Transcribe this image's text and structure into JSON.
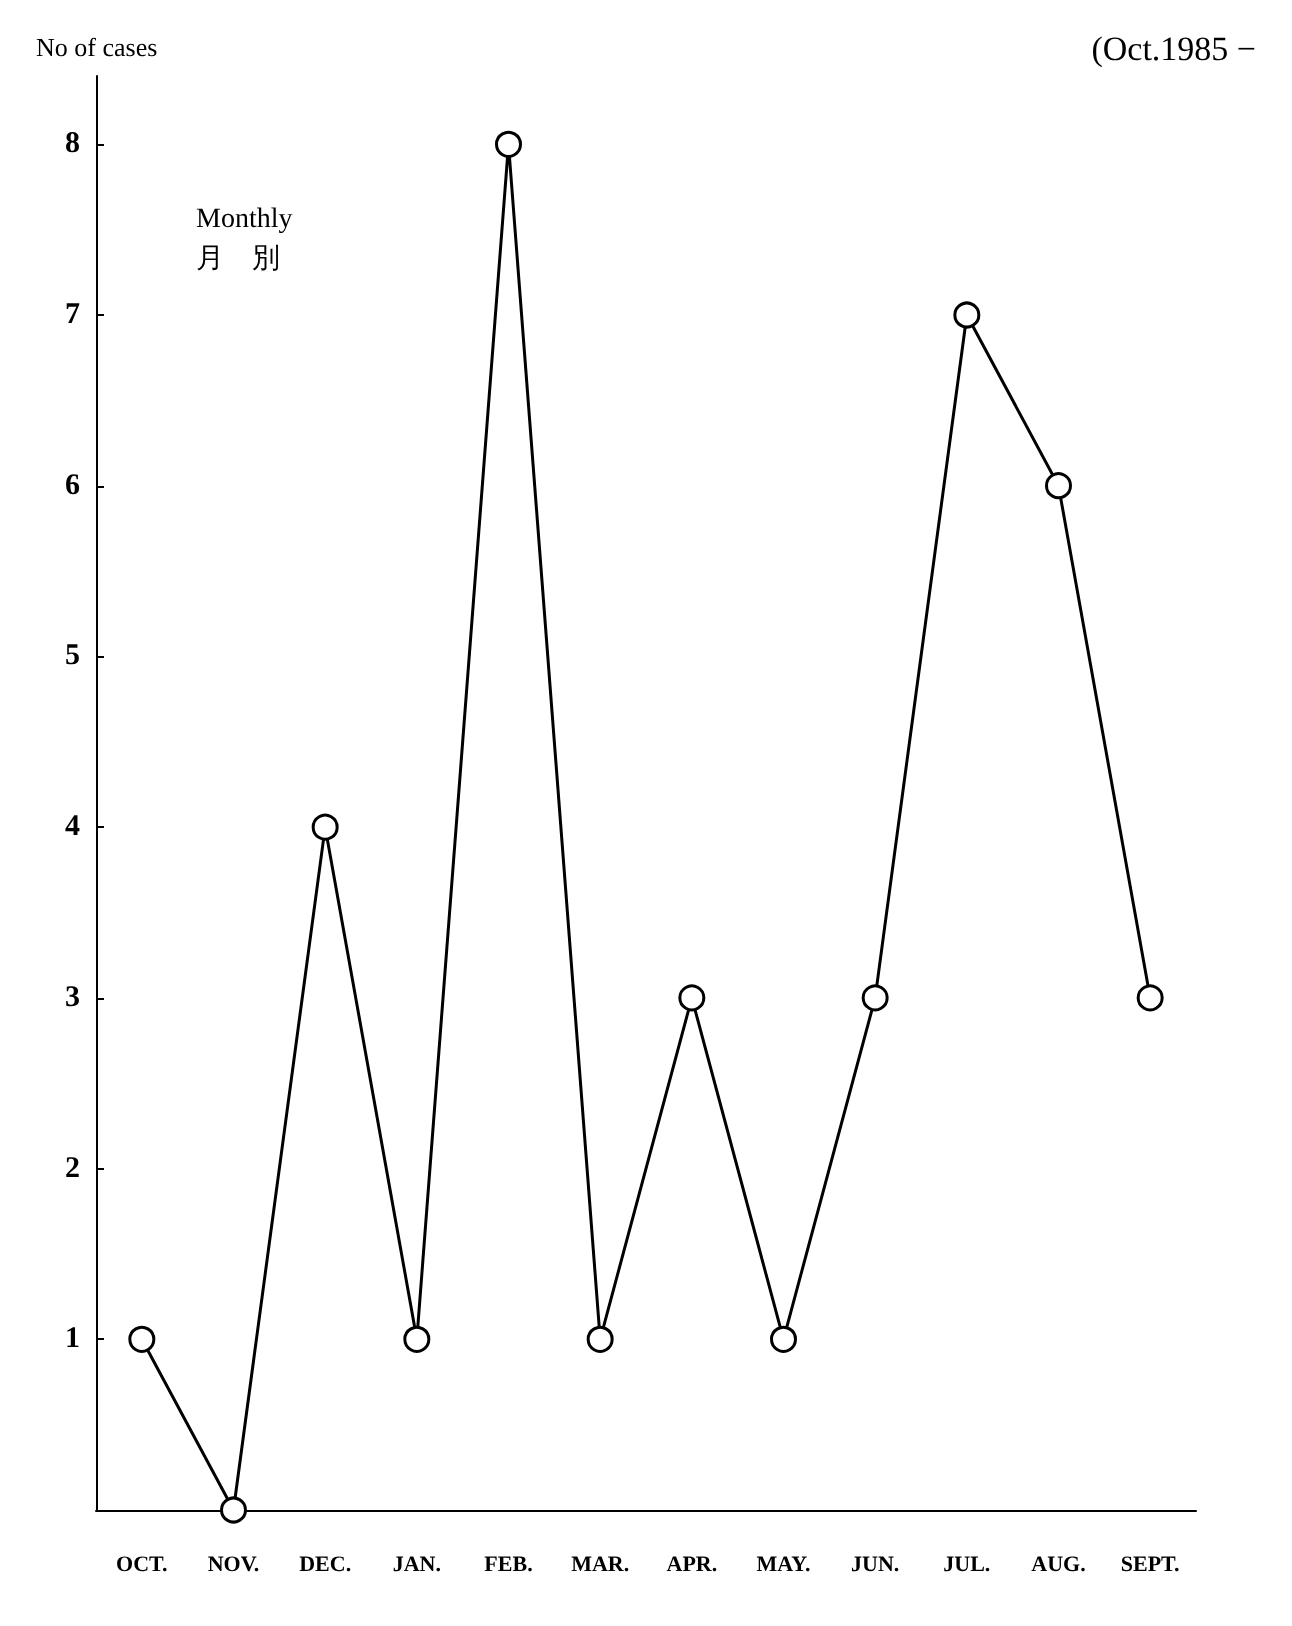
{
  "chart_data": {
    "type": "line",
    "ylabel": "No of cases",
    "annotations": [
      "(Oct.1985 −",
      "Monthly\n月　別"
    ],
    "categories": [
      "OCT.",
      "NOV.",
      "DEC.",
      "JAN.",
      "FEB.",
      "MAR.",
      "APR.",
      "MAY.",
      "JUN.",
      "JUL.",
      "AUG.",
      "SEPT."
    ],
    "series": [
      {
        "color": "#000000",
        "values": [
          1,
          0,
          4,
          1,
          8,
          1,
          3,
          1,
          3,
          7,
          6,
          3
        ]
      }
    ],
    "ylim": [
      0,
      8.4
    ],
    "yticks": [
      1,
      2,
      3,
      4,
      5,
      6,
      7,
      8
    ],
    "grid": false,
    "marker": "circle",
    "line_style": "solid"
  }
}
